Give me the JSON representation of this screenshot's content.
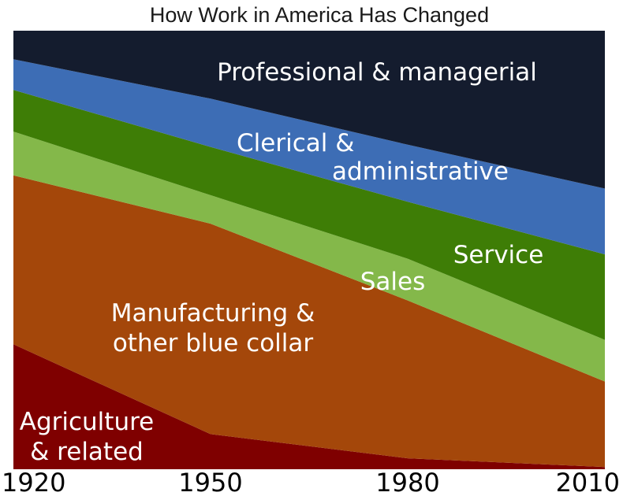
{
  "chart_data": {
    "type": "area",
    "title": "How Work in America Has Changed",
    "x": [
      "1920",
      "1950",
      "1980",
      "2010"
    ],
    "ylim": [
      0,
      100
    ],
    "stacked": true,
    "series": [
      {
        "name": "Agriculture & related",
        "label_lines": [
          "Agriculture",
          "& related"
        ],
        "color": "#7f0000",
        "values": [
          28.5,
          8,
          2.5,
          0.5
        ]
      },
      {
        "name": "Manufacturing & other blue collar",
        "label_lines": [
          "Manufacturing &",
          "other blue collar"
        ],
        "color": "#a4470a",
        "values": [
          38.5,
          48,
          36,
          19.5
        ]
      },
      {
        "name": "Sales",
        "label_lines": [
          "Sales"
        ],
        "color": "#84b84a",
        "values": [
          10,
          6.5,
          9.5,
          9.5
        ]
      },
      {
        "name": "Service",
        "label_lines": [
          "Service"
        ],
        "color": "#3e7d06",
        "values": [
          9.5,
          11,
          13,
          19.5
        ]
      },
      {
        "name": "Clerical & administrative",
        "label_lines": [
          "Clerical &",
          "administrative"
        ],
        "color": "#3d6db5",
        "values": [
          7,
          11,
          13,
          15
        ]
      },
      {
        "name": "Professional & managerial",
        "label_lines": [
          "Professional & managerial"
        ],
        "color": "#141c2e",
        "values": [
          6.5,
          15.5,
          26,
          36
        ]
      }
    ]
  }
}
